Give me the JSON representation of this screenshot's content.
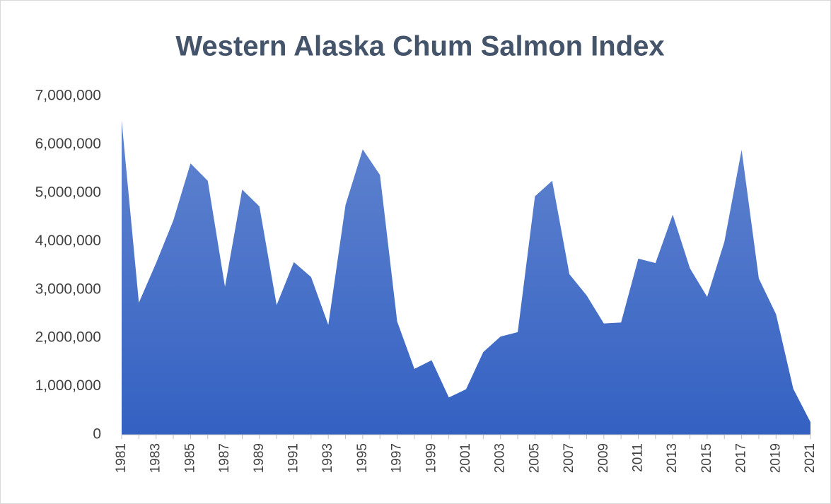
{
  "chart_data": {
    "type": "area",
    "title": "Western Alaska Chum Salmon Index",
    "categories": [
      "1981",
      null,
      "1983",
      null,
      "1985",
      null,
      "1987",
      null,
      "1989",
      null,
      "1991",
      null,
      "1993",
      null,
      "1995",
      null,
      "1997",
      null,
      "1999",
      null,
      "2001",
      null,
      "2003",
      null,
      "2005",
      null,
      "2007",
      null,
      "2009",
      null,
      "2011",
      null,
      "2013",
      null,
      "2015",
      null,
      "2017",
      null,
      "2019",
      null,
      "2021"
    ],
    "values": [
      6500000,
      2730000,
      3550000,
      4430000,
      5610000,
      5250000,
      3060000,
      5070000,
      4720000,
      2680000,
      3570000,
      3260000,
      2270000,
      4750000,
      5900000,
      5370000,
      2340000,
      1360000,
      1540000,
      770000,
      940000,
      1710000,
      2030000,
      2120000,
      4930000,
      5250000,
      3320000,
      2880000,
      2300000,
      2320000,
      3640000,
      3550000,
      4550000,
      3440000,
      2850000,
      3990000,
      5890000,
      3230000,
      2490000,
      950000,
      260000
    ],
    "color": "#3461c2",
    "ylim": [
      0,
      7000000
    ],
    "yticks": [
      0,
      {
        "value": 1000000,
        "label": "1,000,000"
      },
      {
        "value": 2000000,
        "label": "2,000,000"
      },
      {
        "value": 3000000,
        "label": "3,000,000"
      },
      {
        "value": 4000000,
        "label": "4,000,000"
      },
      {
        "value": 5000000,
        "label": "5,000,000"
      },
      {
        "value": 6000000,
        "label": "6,000,000"
      },
      {
        "value": 7000000,
        "label": "7,000,000"
      }
    ],
    "grid": false
  }
}
